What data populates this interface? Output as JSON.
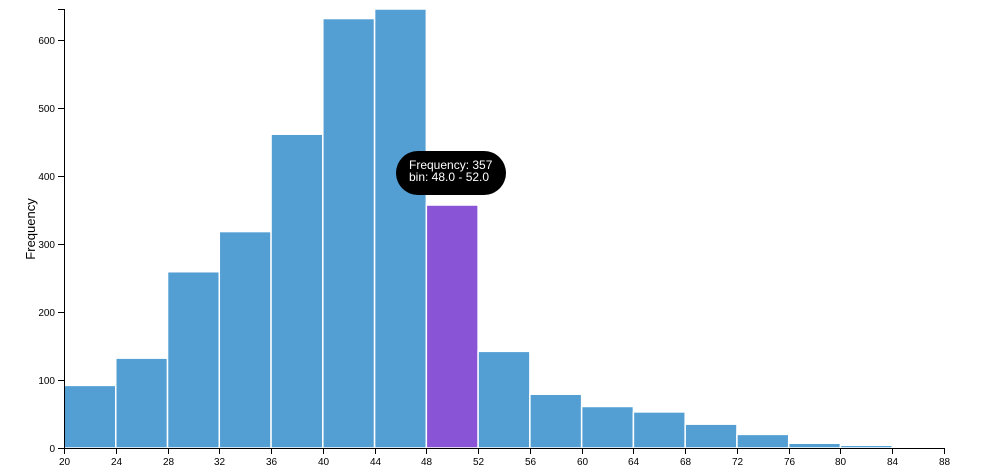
{
  "chart_data": {
    "type": "bar",
    "ylabel": "Frequency",
    "xlabel": "",
    "bin_edges": [
      20,
      24,
      28,
      32,
      36,
      40,
      44,
      48,
      52,
      56,
      60,
      64,
      68,
      72,
      76,
      80,
      84,
      88
    ],
    "values": [
      92,
      132,
      259,
      318,
      461,
      631,
      645,
      357,
      142,
      79,
      61,
      53,
      35,
      20,
      7,
      4,
      2
    ],
    "x_ticks": [
      "20",
      "24",
      "28",
      "32",
      "36",
      "40",
      "44",
      "48",
      "52",
      "56",
      "60",
      "64",
      "68",
      "72",
      "76",
      "80",
      "84",
      "88"
    ],
    "y_ticks": [
      "0",
      "100",
      "200",
      "300",
      "400",
      "500",
      "600"
    ],
    "xlim": [
      20,
      88
    ],
    "ylim": [
      0,
      645
    ],
    "grid": false,
    "highlighted_bin_index": 7,
    "colors": {
      "bar": "#539fd4",
      "highlight": "#8a54d6"
    },
    "tooltip": {
      "line1": "Frequency: 357",
      "line2": "bin: 48.0 - 52.0"
    }
  }
}
